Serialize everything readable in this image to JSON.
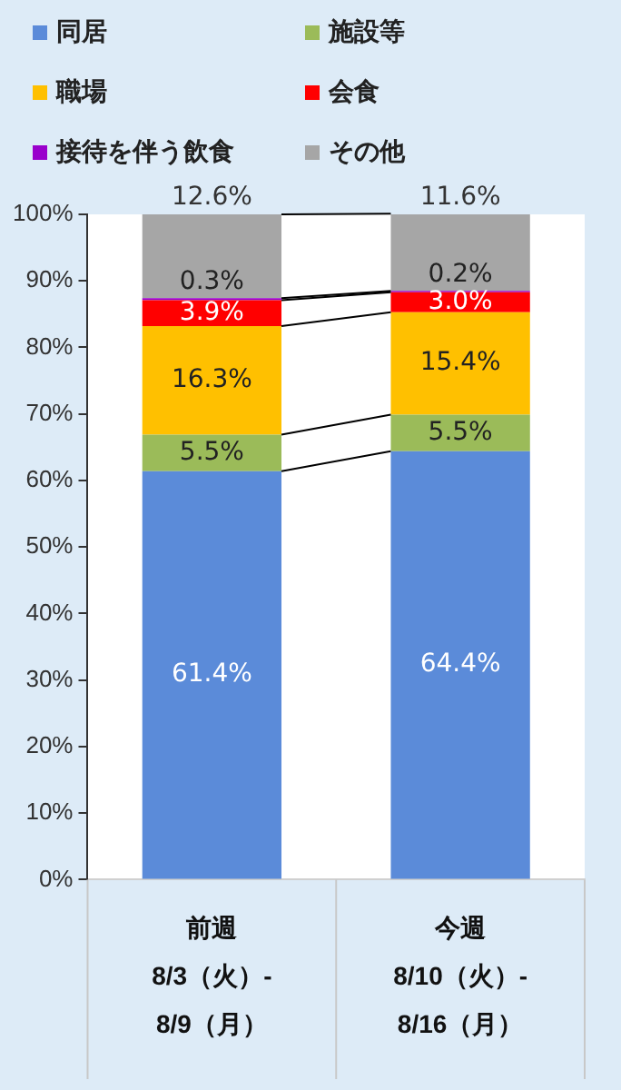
{
  "chart_data": {
    "type": "bar",
    "stacked": true,
    "categories": [
      "前週\n8/3（火）-\n8/9（月）",
      "今週\n8/10（火）-\n8/16（月）"
    ],
    "series": [
      {
        "name": "同居",
        "color": "#5b8bd9",
        "values": [
          61.4,
          64.4
        ],
        "value_labels": [
          "61.4%",
          "64.4%"
        ]
      },
      {
        "name": "施設等",
        "color": "#9bbb59",
        "values": [
          5.5,
          5.5
        ],
        "value_labels": [
          "5.5%",
          "5.5%"
        ]
      },
      {
        "name": "職場",
        "color": "#ffc000",
        "values": [
          16.3,
          15.4
        ],
        "value_labels": [
          "16.3%",
          "15.4%"
        ]
      },
      {
        "name": "会食",
        "color": "#ff0000",
        "values": [
          3.9,
          3.0
        ],
        "value_labels": [
          "3.9%",
          "3.0%"
        ]
      },
      {
        "name": "接待を伴う飲食",
        "color": "#9900cc",
        "values": [
          0.3,
          0.2
        ],
        "value_labels": [
          "0.3%",
          "0.2%"
        ]
      },
      {
        "name": "その他",
        "color": "#a6a6a6",
        "values": [
          12.6,
          11.6
        ],
        "value_labels": [
          "12.6%",
          "11.6%"
        ]
      }
    ],
    "ylim": [
      0,
      100
    ],
    "yticks": [
      {
        "value": 0,
        "label": "0%"
      },
      {
        "value": 10,
        "label": "10%"
      },
      {
        "value": 20,
        "label": "20%"
      },
      {
        "value": 30,
        "label": "30%"
      },
      {
        "value": 40,
        "label": "40%"
      },
      {
        "value": 50,
        "label": "50%"
      },
      {
        "value": 60,
        "label": "60%"
      },
      {
        "value": 70,
        "label": "70%"
      },
      {
        "value": 80,
        "label": "80%"
      },
      {
        "value": 90,
        "label": "90%"
      },
      {
        "value": 100,
        "label": "100%"
      }
    ],
    "grid": false,
    "legend": "top"
  }
}
